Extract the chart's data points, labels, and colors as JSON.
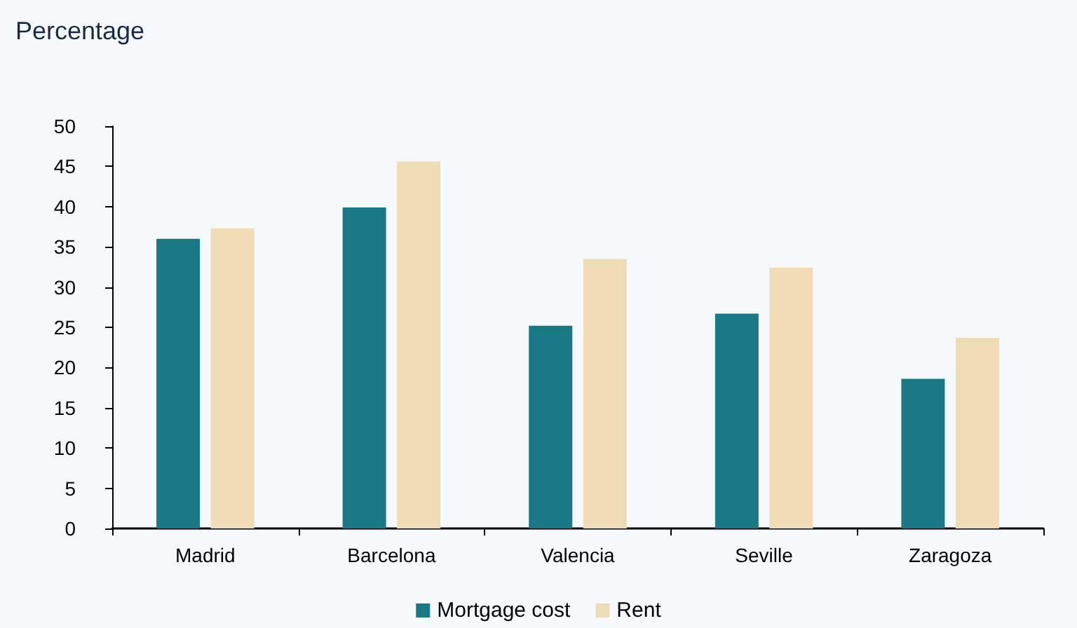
{
  "chart_data": {
    "type": "bar",
    "title": "Percentage",
    "categories": [
      "Madrid",
      "Barcelona",
      "Valencia",
      "Seville",
      "Zaragoza"
    ],
    "series": [
      {
        "name": "Mortgage cost",
        "color": "#1a7885",
        "values": [
          36.0,
          39.9,
          25.2,
          26.7,
          18.6
        ]
      },
      {
        "name": "Rent",
        "color": "#efdcb4",
        "values": [
          37.3,
          45.6,
          33.5,
          32.4,
          23.7
        ]
      }
    ],
    "ylim": [
      0,
      50
    ],
    "yticks": [
      0,
      5,
      10,
      15,
      20,
      25,
      30,
      35,
      40,
      45,
      50
    ],
    "grid": false,
    "legend": "bottom"
  }
}
